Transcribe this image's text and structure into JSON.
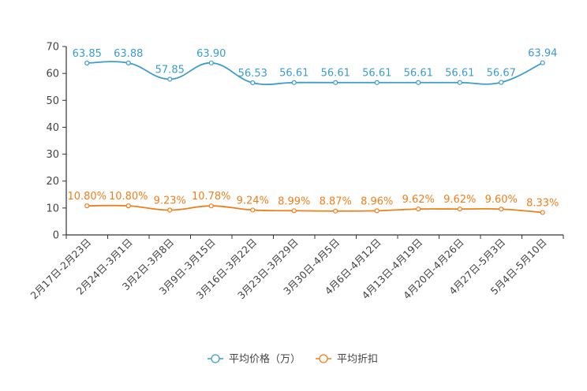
{
  "chart_data": {
    "type": "line",
    "title": "",
    "xlabel": "",
    "ylabel": "",
    "ylim": [
      0,
      70
    ],
    "yticks": [
      0,
      10,
      20,
      30,
      40,
      50,
      60,
      70
    ],
    "yticks_labels": [
      "0",
      "10",
      "20",
      "30",
      "40",
      "50",
      "60",
      "70"
    ],
    "grid": false,
    "legend_position": "bottom-center",
    "categories": [
      "2月17日-2月23日",
      "2月24日-3月1日",
      "3月2日-3月8日",
      "3月9日-3月15日",
      "3月16日-3月22日",
      "3月23日-3月29日",
      "3月30日-4月5日",
      "4月6日-4月12日",
      "4月13日-4月19日",
      "4月20日-4月26日",
      "4月27日-5月3日",
      "5月4日-5月10日"
    ],
    "series": [
      {
        "name": "平均价格（万）",
        "color": "#3b9dcc",
        "values": [
          63.85,
          63.88,
          57.85,
          63.9,
          56.53,
          56.61,
          56.61,
          56.61,
          56.61,
          56.61,
          56.67,
          63.94
        ],
        "labels": [
          "63.85",
          "63.88",
          "57.85",
          "63.90",
          "56.53",
          "56.61",
          "56.61",
          "56.61",
          "56.61",
          "56.61",
          "56.67",
          "63.94"
        ]
      },
      {
        "name": "平均折扣",
        "color": "#f07f1a",
        "values": [
          10.8,
          10.8,
          9.23,
          10.78,
          9.24,
          8.99,
          8.87,
          8.96,
          9.62,
          9.62,
          9.6,
          8.33
        ],
        "labels": [
          "10.80%",
          "10.80%",
          "9.23%",
          "10.78%",
          "9.24%",
          "8.99%",
          "8.87%",
          "8.96%",
          "9.62%",
          "9.62%",
          "9.60%",
          "8.33%"
        ]
      }
    ]
  }
}
